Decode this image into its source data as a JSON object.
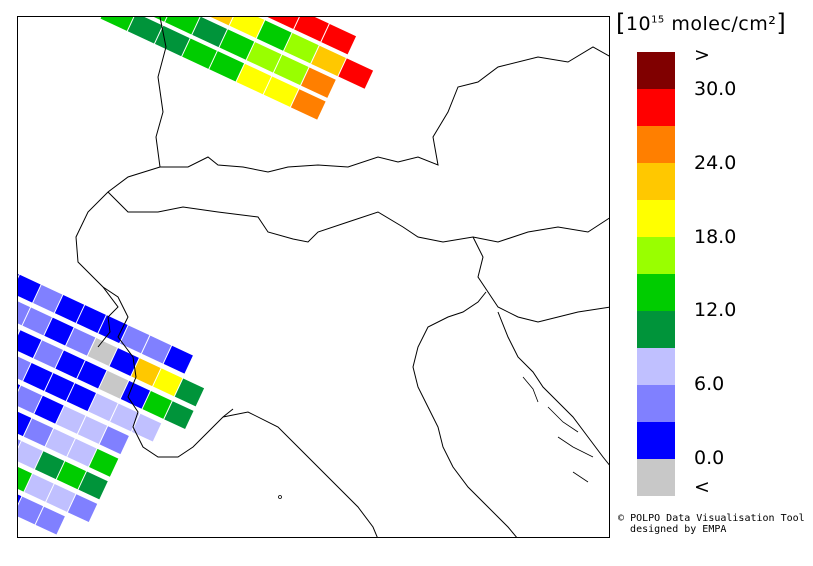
{
  "legend": {
    "title_pre": "10",
    "title_exp": "15",
    "title_post": " molec/cm²",
    "colors": [
      "#c8c8c8",
      "#0000ff",
      "#8080ff",
      "#c0c0ff",
      "#00943a",
      "#00cc00",
      "#99ff00",
      "#ffff00",
      "#ffc800",
      "#ff7f00",
      "#ff0000",
      "#800000"
    ],
    "labels": {
      "gt": ">",
      "v30": "30.0",
      "v24": "24.0",
      "v18": "18.0",
      "v12": "12.0",
      "v6": "6.0",
      "v0": "0.0",
      "lt": "<"
    }
  },
  "credit": {
    "line1": "POLPO Data Visualisation Tool",
    "line2": "designed by EMPA"
  }
}
